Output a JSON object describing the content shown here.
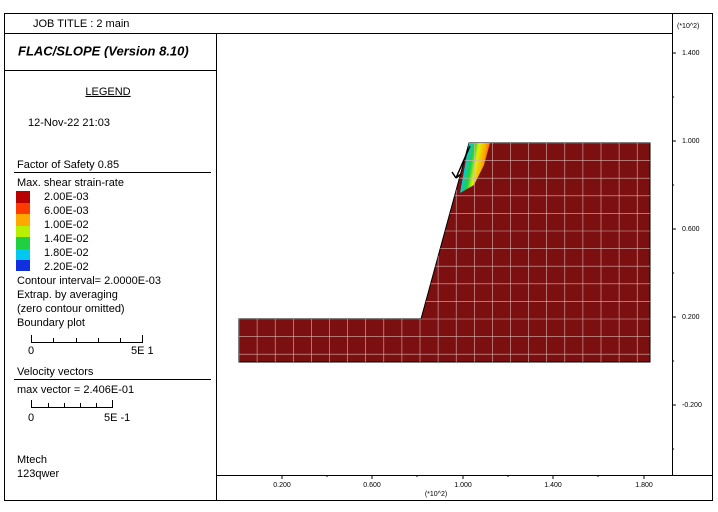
{
  "header": {
    "job_title": "JOB TITLE : 2 main",
    "program": "FLAC/SLOPE (Version 8.10)"
  },
  "legend": {
    "heading": "LEGEND",
    "date": "12-Nov-22  21:03",
    "factor_of_safety": "Factor of Safety  0.85",
    "contour_title": "Max. shear strain-rate",
    "contour_levels": [
      "2.00E-03",
      "6.00E-03",
      "1.00E-02",
      "1.40E-02",
      "1.80E-02",
      "2.20E-02"
    ],
    "contour_interval": "Contour interval=  2.0000E-03",
    "extrapolation": "Extrap. by averaging",
    "zero_contour": "(zero contour omitted)",
    "boundary": "Boundary plot",
    "boundary_scale": [
      "0",
      "5E  1"
    ],
    "velocity_title": "Velocity vectors",
    "max_vector": "max vector =    2.406E-01",
    "velocity_scale": [
      "0",
      "5E -1"
    ],
    "footer": [
      "Mtech",
      "123qwer"
    ]
  },
  "plot": {
    "x_multiplier": "(*10^2)",
    "y_multiplier": "(*10^2)",
    "x_tick_labels": [
      "0.200",
      "0.600",
      "1.000",
      "1.400",
      "1.800"
    ],
    "y_tick_labels": [
      "1.400",
      "1.000",
      "0.600",
      "0.200",
      "-0.200"
    ]
  }
}
